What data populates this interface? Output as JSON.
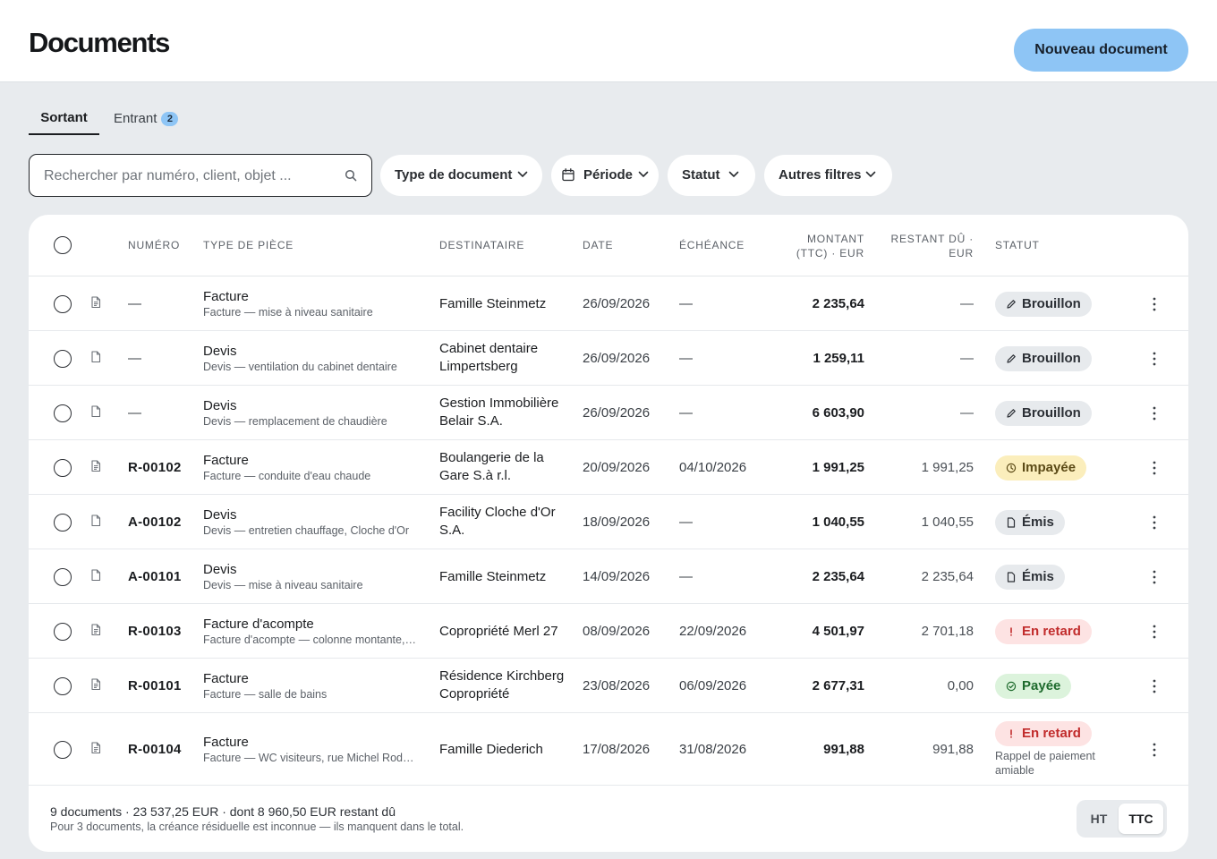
{
  "header": {
    "title": "Documents",
    "new_button": "Nouveau document"
  },
  "colors": {
    "accent": "#8ec5f5",
    "late": "#c12c2c",
    "paid": "#1d6a2c",
    "unpaid": "#fbeebc"
  },
  "tabs": [
    {
      "label": "Sortant",
      "active": true
    },
    {
      "label": "Entrant",
      "badge": "2",
      "active": false
    }
  ],
  "search": {
    "placeholder": "Rechercher par numéro, client, objet ...",
    "value": ""
  },
  "filters": {
    "type": "Type de document",
    "period": "Période",
    "status": "Statut",
    "others": "Autres filtres"
  },
  "table": {
    "headers": {
      "number": "NUMÉRO",
      "type": "TYPE DE PIÈCE",
      "recipient": "DESTINATAIRE",
      "date": "DATE",
      "due": "ÉCHÉANCE",
      "amount_line1": "MONTANT",
      "amount_line2": "(TTC) · EUR",
      "remaining_line1": "RESTANT DÛ ·",
      "remaining_line2": "EUR",
      "status": "STATUT"
    },
    "rows": [
      {
        "icon": "invoice-icon",
        "number": "—",
        "type": "Facture",
        "subject": "Facture — mise à niveau sanitaire",
        "recipient_1": "Famille Steinmetz",
        "recipient_2": "",
        "date": "26/09/2026",
        "due": "—",
        "amount": "2 235,64",
        "remaining": "—",
        "status": "Brouillon",
        "status_kind": "draft",
        "note": ""
      },
      {
        "icon": "quote-icon",
        "number": "—",
        "type": "Devis",
        "subject": "Devis — ventilation du cabinet dentaire",
        "recipient_1": "Cabinet dentaire",
        "recipient_2": "Limpertsberg",
        "date": "26/09/2026",
        "due": "—",
        "amount": "1 259,11",
        "remaining": "—",
        "status": "Brouillon",
        "status_kind": "draft",
        "note": ""
      },
      {
        "icon": "quote-icon",
        "number": "—",
        "type": "Devis",
        "subject": "Devis — remplacement de chaudière",
        "recipient_1": "Gestion Immobilière",
        "recipient_2": "Belair S.A.",
        "date": "26/09/2026",
        "due": "—",
        "amount": "6 603,90",
        "remaining": "—",
        "status": "Brouillon",
        "status_kind": "draft",
        "note": ""
      },
      {
        "icon": "invoice-icon",
        "number": "R-00102",
        "type": "Facture",
        "subject": "Facture — conduite d'eau chaude",
        "recipient_1": "Boulangerie de la",
        "recipient_2": "Gare S.à r.l.",
        "date": "20/09/2026",
        "due": "04/10/2026",
        "amount": "1 991,25",
        "remaining": "1 991,25",
        "status": "Impayée",
        "status_kind": "unpaid",
        "note": ""
      },
      {
        "icon": "quote-icon",
        "number": "A-00102",
        "type": "Devis",
        "subject": "Devis — entretien chauffage, Cloche d'Or",
        "recipient_1": "Facility Cloche d'Or",
        "recipient_2": "S.A.",
        "date": "18/09/2026",
        "due": "—",
        "amount": "1 040,55",
        "remaining": "1 040,55",
        "status": "Émis",
        "status_kind": "sent",
        "note": ""
      },
      {
        "icon": "quote-icon",
        "number": "A-00101",
        "type": "Devis",
        "subject": "Devis — mise à niveau sanitaire",
        "recipient_1": "Famille Steinmetz",
        "recipient_2": "",
        "date": "14/09/2026",
        "due": "—",
        "amount": "2 235,64",
        "remaining": "2 235,64",
        "status": "Émis",
        "status_kind": "sent",
        "note": ""
      },
      {
        "icon": "invoice-icon",
        "number": "R-00103",
        "type": "Facture d'acompte",
        "subject": "Facture d'acompte — colonne montante, rue de la…",
        "recipient_1": "Copropriété Merl 27",
        "recipient_2": "",
        "date": "08/09/2026",
        "due": "22/09/2026",
        "amount": "4 501,97",
        "remaining": "2 701,18",
        "status": "En retard",
        "status_kind": "late",
        "note": ""
      },
      {
        "icon": "invoice-icon",
        "number": "R-00101",
        "type": "Facture",
        "subject": "Facture — salle de bains",
        "recipient_1": "Résidence Kirchberg",
        "recipient_2": "Copropriété",
        "date": "23/08/2026",
        "due": "06/09/2026",
        "amount": "2 677,31",
        "remaining": "0,00",
        "status": "Payée",
        "status_kind": "paid",
        "note": ""
      },
      {
        "icon": "invoice-icon",
        "number": "R-00104",
        "type": "Facture",
        "subject": "Facture — WC visiteurs, rue Michel Rodange…",
        "recipient_1": "Famille Diederich",
        "recipient_2": "",
        "date": "17/08/2026",
        "due": "31/08/2026",
        "amount": "991,88",
        "remaining": "991,88",
        "status": "En retard",
        "status_kind": "late",
        "note": "Rappel de paiement amiable"
      }
    ]
  },
  "footer": {
    "summary": "9 documents · 23 537,25 EUR · dont 8 960,50 EUR restant dû",
    "note": "Pour 3 documents, la créance résiduelle est inconnue — ils manquent dans le total.",
    "toggle_ht": "HT",
    "toggle_ttc": "TTC"
  }
}
